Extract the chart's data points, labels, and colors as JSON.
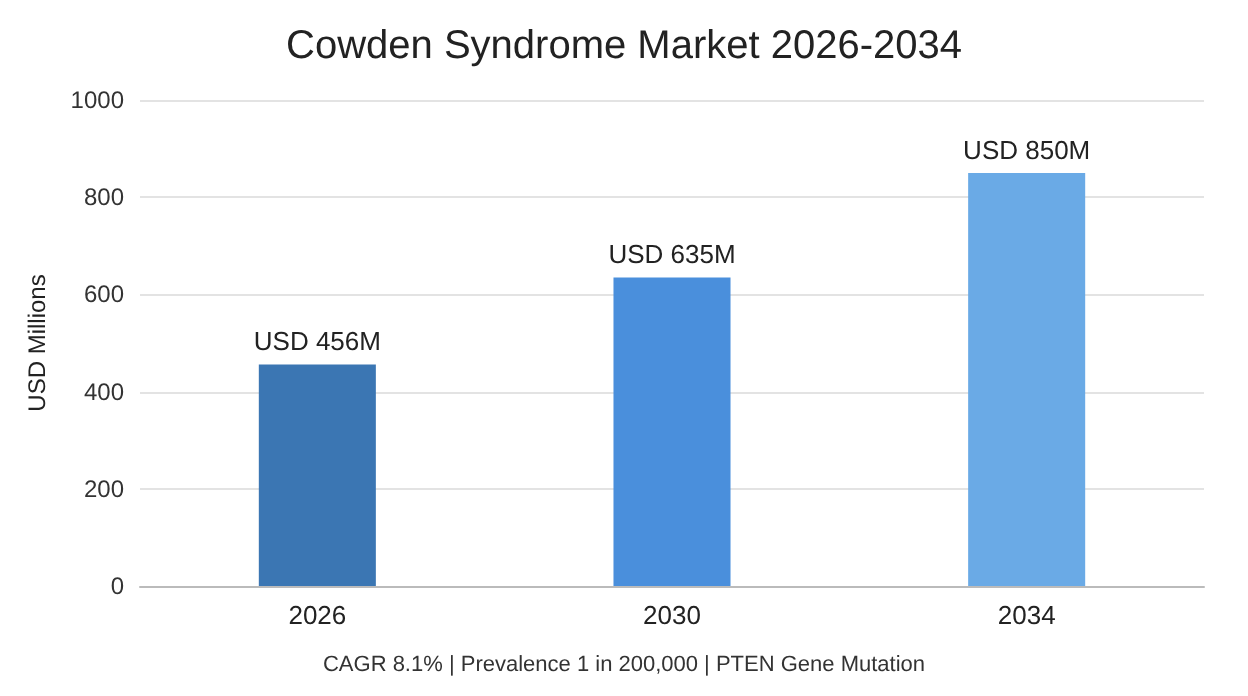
{
  "chart_data": {
    "type": "bar",
    "title": "Cowden Syndrome Market 2026-2034",
    "ylabel": "USD Millions",
    "categories": [
      "2026",
      "2030",
      "2034"
    ],
    "values": [
      456,
      635,
      850
    ],
    "colors": [
      "#3b76b3",
      "#4a8fdc",
      "#6aaae6"
    ],
    "value_labels": [
      "USD 456M",
      "USD 635M",
      "USD 850M"
    ],
    "ylim": [
      0,
      1000
    ],
    "yticks": [
      0,
      200,
      400,
      600,
      800,
      1000
    ],
    "grid": "y",
    "annotations": [
      "CAGR 8.1% | Prevalence 1 in 200,000 | PTEN Gene Mutation"
    ]
  }
}
